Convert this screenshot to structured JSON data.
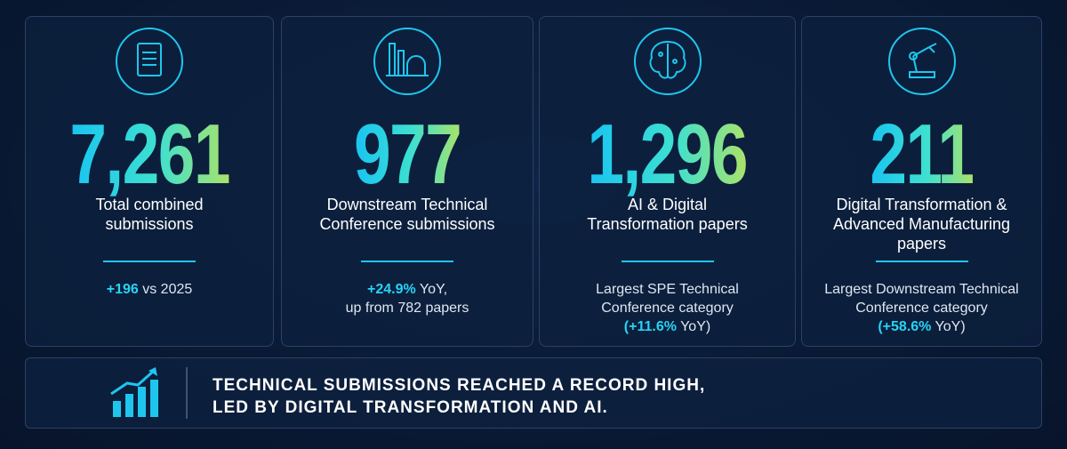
{
  "cards": [
    {
      "value": "7,261",
      "label": [
        "Total combined",
        "submissions"
      ],
      "note": [
        [
          {
            "text": "+196",
            "accent": true
          },
          {
            "text": " vs 2025",
            "accent": false
          }
        ]
      ]
    },
    {
      "value": "977",
      "label": [
        "Downstream Technical",
        "Conference submissions"
      ],
      "note": [
        [
          {
            "text": "+24.9%",
            "accent": true
          },
          {
            "text": " YoY,",
            "accent": false
          }
        ],
        [
          {
            "text": "up from 782 papers",
            "accent": false
          }
        ]
      ]
    },
    {
      "value": "1,296",
      "label": [
        "AI & Digital",
        "Transformation papers"
      ],
      "note": [
        [
          {
            "text": "Largest SPE Technical",
            "accent": false
          }
        ],
        [
          {
            "text": "Conference category",
            "accent": false
          }
        ],
        [
          {
            "text": "(+11.6%",
            "accent": true
          },
          {
            "text": " YoY)",
            "accent": false
          }
        ]
      ]
    },
    {
      "value": "211",
      "label": [
        "Digital Transformation &",
        "Advanced Manufacturing",
        "papers"
      ],
      "note": [
        [
          {
            "text": "Largest Downstream Technical",
            "accent": false
          }
        ],
        [
          {
            "text": "Conference category",
            "accent": false
          }
        ],
        [
          {
            "text": "(+58.6%",
            "accent": true
          },
          {
            "text": " YoY)",
            "accent": false
          }
        ]
      ]
    }
  ],
  "banner": {
    "lines": [
      "TECHNICAL SUBMISSIONS REACHED A RECORD HIGH,",
      "LED BY DIGITAL TRANSFORMATION AND AI."
    ]
  }
}
